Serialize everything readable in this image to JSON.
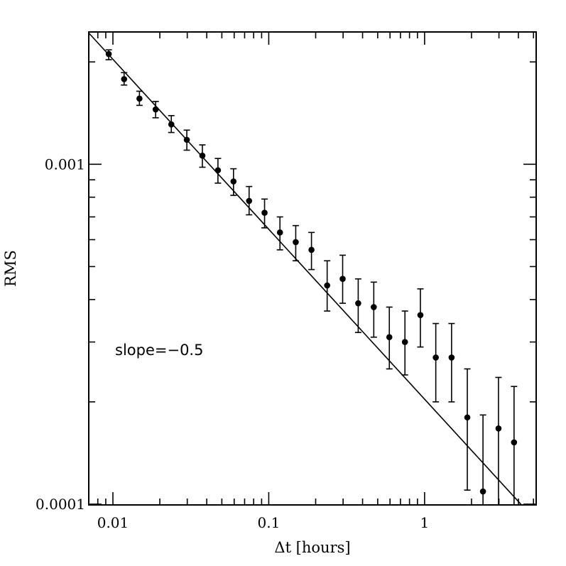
{
  "chart_data": {
    "type": "scatter",
    "xlabel": "Δt [hours]",
    "ylabel": "RMS",
    "xscale": "log",
    "yscale": "log",
    "xlim": [
      0.007,
      5.2
    ],
    "ylim": [
      9.95e-05,
      0.00245
    ],
    "x_ticklabels": [
      {
        "value": 0.01,
        "label": "0.01"
      },
      {
        "value": 0.1,
        "label": "0.1"
      },
      {
        "value": 1,
        "label": "1"
      }
    ],
    "y_ticklabels": [
      {
        "value": 0.0001,
        "label": "0.0001"
      },
      {
        "value": 0.001,
        "label": "0.001"
      }
    ],
    "annotation": "slope=−0.5",
    "fit_line": {
      "slope": -0.5,
      "x": [
        0.007,
        5.2
      ],
      "y": [
        0.002433,
        8.93e-05
      ]
    },
    "points": [
      {
        "x": 0.0094,
        "y": 0.00211,
        "yerr_low": 0.00203,
        "yerr_high": 0.00217
      },
      {
        "x": 0.0118,
        "y": 0.00178,
        "yerr_low": 0.00171,
        "yerr_high": 0.00186
      },
      {
        "x": 0.0148,
        "y": 0.00156,
        "yerr_low": 0.00149,
        "yerr_high": 0.00164
      },
      {
        "x": 0.0188,
        "y": 0.00145,
        "yerr_low": 0.00137,
        "yerr_high": 0.00153
      },
      {
        "x": 0.0237,
        "y": 0.00131,
        "yerr_low": 0.00124,
        "yerr_high": 0.00139
      },
      {
        "x": 0.0298,
        "y": 0.00118,
        "yerr_low": 0.0011,
        "yerr_high": 0.00126
      },
      {
        "x": 0.0375,
        "y": 0.00106,
        "yerr_low": 0.00098,
        "yerr_high": 0.00114
      },
      {
        "x": 0.0472,
        "y": 0.00096,
        "yerr_low": 0.00088,
        "yerr_high": 0.00104
      },
      {
        "x": 0.0594,
        "y": 0.00089,
        "yerr_low": 0.00081,
        "yerr_high": 0.00097
      },
      {
        "x": 0.0748,
        "y": 0.00078,
        "yerr_low": 0.00071,
        "yerr_high": 0.00086
      },
      {
        "x": 0.094,
        "y": 0.00072,
        "yerr_low": 0.00065,
        "yerr_high": 0.00079
      },
      {
        "x": 0.118,
        "y": 0.00063,
        "yerr_low": 0.00056,
        "yerr_high": 0.0007
      },
      {
        "x": 0.149,
        "y": 0.00059,
        "yerr_low": 0.00052,
        "yerr_high": 0.00066
      },
      {
        "x": 0.188,
        "y": 0.00056,
        "yerr_low": 0.00049,
        "yerr_high": 0.00063
      },
      {
        "x": 0.237,
        "y": 0.00044,
        "yerr_low": 0.00037,
        "yerr_high": 0.00052
      },
      {
        "x": 0.298,
        "y": 0.00046,
        "yerr_low": 0.00039,
        "yerr_high": 0.00054
      },
      {
        "x": 0.375,
        "y": 0.00039,
        "yerr_low": 0.00032,
        "yerr_high": 0.00046
      },
      {
        "x": 0.472,
        "y": 0.00038,
        "yerr_low": 0.00031,
        "yerr_high": 0.00045
      },
      {
        "x": 0.594,
        "y": 0.00031,
        "yerr_low": 0.00025,
        "yerr_high": 0.00038
      },
      {
        "x": 0.748,
        "y": 0.0003,
        "yerr_low": 0.00024,
        "yerr_high": 0.00037
      },
      {
        "x": 0.94,
        "y": 0.00036,
        "yerr_low": 0.00029,
        "yerr_high": 0.00043
      },
      {
        "x": 1.18,
        "y": 0.00027,
        "yerr_low": 0.0002,
        "yerr_high": 0.00034
      },
      {
        "x": 1.49,
        "y": 0.00027,
        "yerr_low": 0.0002,
        "yerr_high": 0.00034
      },
      {
        "x": 1.88,
        "y": 0.00018,
        "yerr_low": 0.00011,
        "yerr_high": 0.00025
      },
      {
        "x": 2.37,
        "y": 0.000109,
        "yerr_low": 9.95e-05,
        "yerr_high": 0.000183
      },
      {
        "x": 2.98,
        "y": 0.000167,
        "yerr_low": 9.7e-05,
        "yerr_high": 0.000236
      },
      {
        "x": 3.75,
        "y": 0.000152,
        "yerr_low": 9.95e-05,
        "yerr_high": 0.000222
      }
    ]
  }
}
